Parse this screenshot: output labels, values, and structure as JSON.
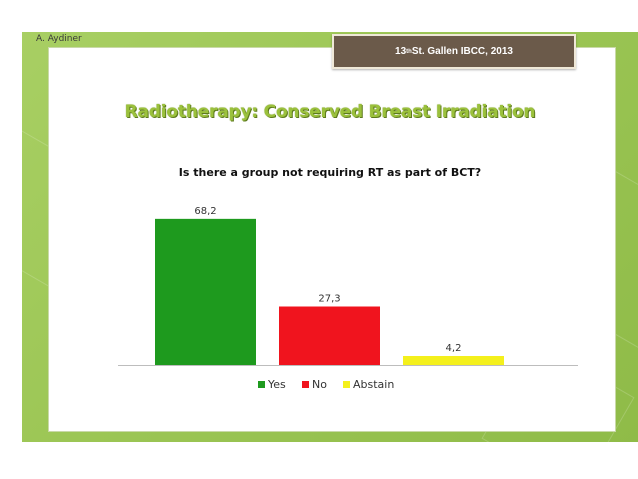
{
  "header": {
    "author": "A. Aydiner",
    "conference_main": "13",
    "conference_sup": "th",
    "conference_rest": " St. Gallen IBCC, 2013"
  },
  "slide_title": "Radiotherapy: Conserved Breast Irradiation",
  "colors": {
    "yes": "#1e9a1e",
    "no": "#f0141e",
    "abstain": "#f4f01c",
    "title": "#9bc13c",
    "frame": "#9cc655",
    "conf_box": "#6b5a4a"
  },
  "chart_data": {
    "type": "bar",
    "title": "Is there a group not requiring RT as part of BCT?",
    "categories": [
      "Yes",
      "No",
      "Abstain"
    ],
    "values": [
      68.2,
      27.3,
      4.2
    ],
    "value_labels": [
      "68,2",
      "27,3",
      "4,2"
    ],
    "xlabel": "",
    "ylabel": "",
    "ylim": [
      0,
      70
    ],
    "grid": false,
    "legend": "bottom"
  }
}
